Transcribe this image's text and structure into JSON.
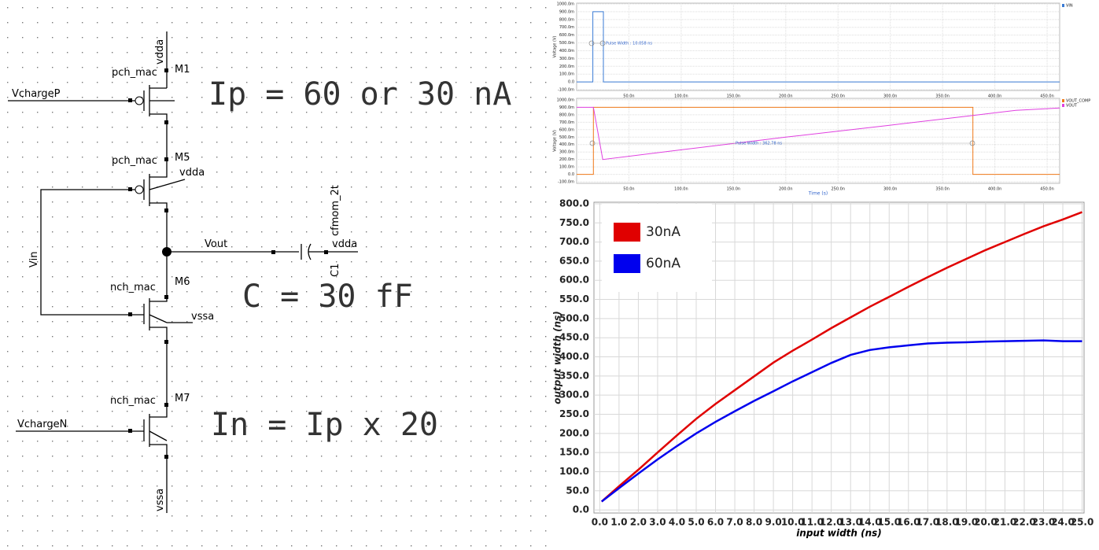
{
  "schematic": {
    "labels": [
      "vdda",
      "pch_mac",
      "M1",
      "VchargeP",
      "pch_mac",
      "M5",
      "vdda",
      "Vin",
      "cfmom_2t",
      "Vout",
      "vdda",
      "C1",
      "nch_mac",
      "M6",
      "vssa",
      "nch_mac",
      "M7",
      "VchargeN",
      "vssa"
    ],
    "equations": [
      "Ip = 60 or 30 nA",
      "C = 30 fF",
      "In = Ip x 20"
    ]
  },
  "chart_data": [
    {
      "type": "line",
      "ylabel": "Voltage (V)",
      "xlim": [
        0,
        462
      ],
      "ylim": [
        -110,
        1010
      ],
      "xticks": [
        {
          "value": 50,
          "label": "50.0n"
        },
        {
          "value": 100,
          "label": "100.0n"
        },
        {
          "value": 150,
          "label": "150.0n"
        },
        {
          "value": 200,
          "label": "200.0n"
        },
        {
          "value": 250,
          "label": "250.0n"
        },
        {
          "value": 300,
          "label": "300.0n"
        },
        {
          "value": 350,
          "label": "350.0n"
        },
        {
          "value": 400,
          "label": "400.0n"
        },
        {
          "value": 450,
          "label": "450.0n"
        }
      ],
      "yticks": [
        {
          "value": 1000,
          "label": "1000.0m"
        },
        {
          "value": 900,
          "label": "900.0m"
        },
        {
          "value": 800,
          "label": "800.0m"
        },
        {
          "value": 700,
          "label": "700.0m"
        },
        {
          "value": 600,
          "label": "600.0m"
        },
        {
          "value": 500,
          "label": "500.0m"
        },
        {
          "value": 400,
          "label": "400.0m"
        },
        {
          "value": 300,
          "label": "300.0m"
        },
        {
          "value": 200,
          "label": "200.0m"
        },
        {
          "value": 100,
          "label": "100.0m"
        },
        {
          "value": 0,
          "label": "0.0"
        },
        {
          "value": -100,
          "label": "-100.0m"
        }
      ],
      "grid": true,
      "annotations": [
        "Pulse Width : 10.058 ns"
      ],
      "series": [
        {
          "name": "VIN",
          "color": "#3a7bd5",
          "x": [
            0,
            15.5,
            15.5,
            25.6,
            25.6,
            462
          ],
          "values": [
            0,
            0,
            900,
            900,
            0,
            0
          ]
        }
      ]
    },
    {
      "type": "line",
      "ylabel": "Voltage (V)",
      "xlabel": "Time (s)",
      "xlim": [
        0,
        462
      ],
      "ylim": [
        -120,
        1020
      ],
      "xticks": [
        {
          "value": 50,
          "label": "50.0n"
        },
        {
          "value": 100,
          "label": "100.0n"
        },
        {
          "value": 150,
          "label": "150.0n"
        },
        {
          "value": 200,
          "label": "200.0n"
        },
        {
          "value": 250,
          "label": "250.0n"
        },
        {
          "value": 300,
          "label": "300.0n"
        },
        {
          "value": 350,
          "label": "350.0n"
        },
        {
          "value": 400,
          "label": "400.0n"
        },
        {
          "value": 450,
          "label": "450.0n"
        }
      ],
      "yticks": [
        {
          "value": 1000,
          "label": "1000.0m"
        },
        {
          "value": 900,
          "label": "900.0m"
        },
        {
          "value": 800,
          "label": "800.0m"
        },
        {
          "value": 700,
          "label": "700.0m"
        },
        {
          "value": 600,
          "label": "600.0m"
        },
        {
          "value": 500,
          "label": "500.0m"
        },
        {
          "value": 400,
          "label": "400.0m"
        },
        {
          "value": 300,
          "label": "300.0m"
        },
        {
          "value": 200,
          "label": "200.0m"
        },
        {
          "value": 100,
          "label": "100.0m"
        },
        {
          "value": 0,
          "label": "0.0"
        },
        {
          "value": -100,
          "label": "-100.0m"
        }
      ],
      "grid": true,
      "annotations": [
        "Pulse Width : 362.78 ns"
      ],
      "series": [
        {
          "name": "VOUT_COMP",
          "color": "#f07a1a",
          "x": [
            0,
            16,
            16,
            379,
            379,
            462
          ],
          "values": [
            0,
            0,
            900,
            900,
            0,
            0
          ]
        },
        {
          "name": "VOUT",
          "color": "#e040e0",
          "x": [
            0,
            16,
            25,
            100,
            200,
            300,
            379,
            420,
            462
          ],
          "values": [
            900,
            900,
            200,
            330,
            500,
            660,
            790,
            860,
            890
          ]
        }
      ]
    },
    {
      "type": "line",
      "xlabel": "input width (ns)",
      "ylabel": "output width (ns)",
      "xlim": [
        -0.3,
        25.1
      ],
      "ylim": [
        -8,
        804
      ],
      "grid": true,
      "xticks": [
        {
          "value": 0,
          "label": "0.0"
        },
        {
          "value": 1,
          "label": "1.0"
        },
        {
          "value": 2,
          "label": "2.0"
        },
        {
          "value": 3,
          "label": "3.0"
        },
        {
          "value": 4,
          "label": "4.0"
        },
        {
          "value": 5,
          "label": "5.0"
        },
        {
          "value": 6,
          "label": "6.0"
        },
        {
          "value": 7,
          "label": "7.0"
        },
        {
          "value": 8,
          "label": "8.0"
        },
        {
          "value": 9,
          "label": "9.0"
        },
        {
          "value": 10,
          "label": "10.0"
        },
        {
          "value": 11,
          "label": "11.0"
        },
        {
          "value": 12,
          "label": "12.0"
        },
        {
          "value": 13,
          "label": "13.0"
        },
        {
          "value": 14,
          "label": "14.0"
        },
        {
          "value": 15,
          "label": "15.0"
        },
        {
          "value": 16,
          "label": "16.0"
        },
        {
          "value": 17,
          "label": "17.0"
        },
        {
          "value": 18,
          "label": "18.0"
        },
        {
          "value": 19,
          "label": "19.0"
        },
        {
          "value": 20,
          "label": "20.0"
        },
        {
          "value": 21,
          "label": "21.0"
        },
        {
          "value": 22,
          "label": "22.0"
        },
        {
          "value": 23,
          "label": "23.0"
        },
        {
          "value": 24,
          "label": "24.0"
        },
        {
          "value": 25,
          "label": "25.0"
        }
      ],
      "yticks": [
        {
          "value": 0,
          "label": "0.0"
        },
        {
          "value": 50,
          "label": "50.0"
        },
        {
          "value": 100,
          "label": "100.0"
        },
        {
          "value": 150,
          "label": "150.0"
        },
        {
          "value": 200,
          "label": "200.0"
        },
        {
          "value": 250,
          "label": "250.0"
        },
        {
          "value": 300,
          "label": "300.0"
        },
        {
          "value": 350,
          "label": "350.0"
        },
        {
          "value": 400,
          "label": "400.0"
        },
        {
          "value": 450,
          "label": "450.0"
        },
        {
          "value": 500,
          "label": "500.0"
        },
        {
          "value": 550,
          "label": "550.0"
        },
        {
          "value": 600,
          "label": "600.0"
        },
        {
          "value": 650,
          "label": "650.0"
        },
        {
          "value": 700,
          "label": "700.0"
        },
        {
          "value": 750,
          "label": "750.0"
        },
        {
          "value": 800,
          "label": "800.0"
        }
      ],
      "x": [
        0.1,
        1,
        2,
        3,
        4,
        5,
        6,
        7,
        8,
        9,
        10,
        11,
        12,
        13,
        14,
        15,
        16,
        17,
        18,
        19,
        20,
        21,
        22,
        23,
        24,
        25
      ],
      "series": [
        {
          "name": "30nA",
          "color": "#e00000",
          "values": [
            22,
            62,
            105,
            150,
            195,
            238,
            277,
            313,
            349,
            385,
            416,
            445,
            475,
            503,
            531,
            557,
            583,
            608,
            633,
            656,
            679,
            700,
            721,
            741,
            759,
            778
          ]
        },
        {
          "name": "60nA",
          "color": "#0000ee",
          "values": [
            22,
            57,
            95,
            132,
            167,
            200,
            230,
            258,
            285,
            310,
            336,
            360,
            384,
            405,
            418,
            425,
            430,
            435,
            437,
            438,
            440,
            441,
            442,
            443,
            441,
            441
          ]
        }
      ]
    }
  ]
}
